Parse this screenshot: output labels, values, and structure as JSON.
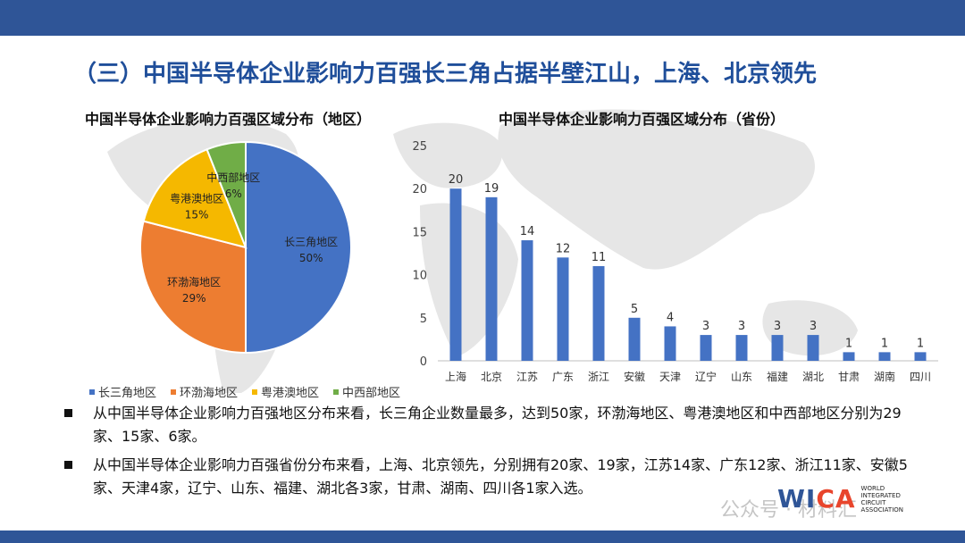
{
  "title": "（三）中国半导体企业影响力百强长三角占据半壁江山，上海、北京领先",
  "colors": {
    "header_bar": "#2f5597",
    "title": "#1f4e9a",
    "bar": "#4472c4",
    "pie": [
      "#4472c4",
      "#ed7d31",
      "#f5b800",
      "#70ad47"
    ]
  },
  "chart_data": [
    {
      "type": "pie",
      "title": "中国半导体企业影响力百强区域分布（地区）",
      "slices": [
        {
          "name": "长三角地区",
          "value": 50,
          "label": "50%"
        },
        {
          "name": "环渤海地区",
          "value": 29,
          "label": "29%"
        },
        {
          "name": "粤港澳地区",
          "value": 15,
          "label": "15%"
        },
        {
          "name": "中西部地区",
          "value": 6,
          "label": "6%"
        }
      ],
      "legend": [
        "长三角地区",
        "环渤海地区",
        "粤港澳地区",
        "中西部地区"
      ],
      "legend_position": "bottom"
    },
    {
      "type": "bar",
      "title": "中国半导体企业影响力百强区域分布（省份）",
      "categories": [
        "上海",
        "北京",
        "江苏",
        "广东",
        "浙江",
        "安徽",
        "天津",
        "辽宁",
        "山东",
        "福建",
        "湖北",
        "甘肃",
        "湖南",
        "四川"
      ],
      "values": [
        20,
        19,
        14,
        12,
        11,
        5,
        4,
        3,
        3,
        3,
        3,
        1,
        1,
        1
      ],
      "ylim": [
        0,
        25
      ],
      "yticks": [
        0,
        5,
        10,
        15,
        20,
        25
      ],
      "grid": false
    }
  ],
  "bullets": [
    "从中国半导体企业影响力百强地区分布来看，长三角企业数量最多，达到50家，环渤海地区、粤港澳地区和中西部地区分别为29家、15家、6家。",
    "从中国半导体企业影响力百强省份分布来看，上海、北京领先，分别拥有20家、19家，江苏14家、广东12家、浙江11家、安徽5家、天津4家，辽宁、山东、福建、湖北各3家，甘肃、湖南、四川各1家入选。"
  ],
  "logo": {
    "mark_main": "WI",
    "mark_accent": "CA",
    "subtitle": "WORLD INTEGRATED CIRCUIT ASSOCIATION"
  },
  "watermark": "公众号 · 材料汇"
}
